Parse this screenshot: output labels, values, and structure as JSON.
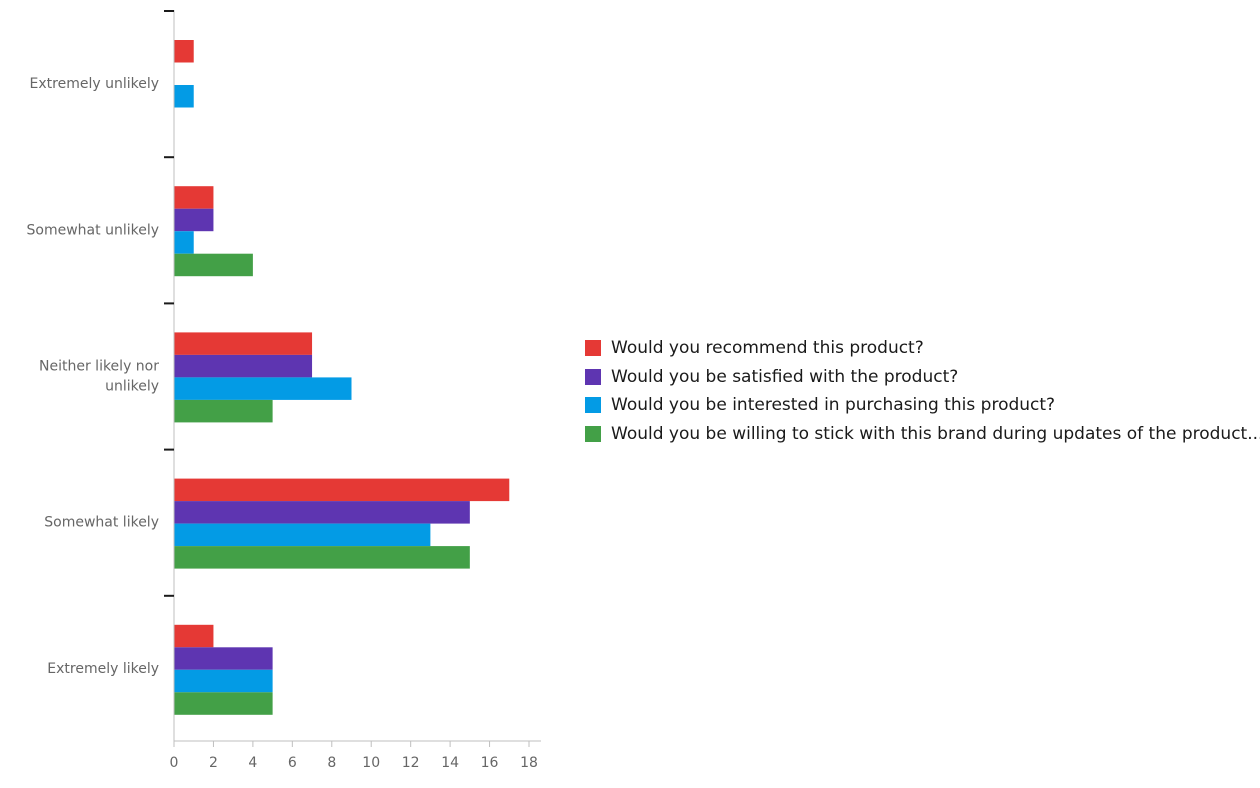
{
  "chart_data": {
    "type": "bar",
    "orientation": "horizontal",
    "categories": [
      "Extremely unlikely",
      "Somewhat unlikely",
      "Neither likely nor unlikely",
      "Somewhat likely",
      "Extremely likely"
    ],
    "series": [
      {
        "name": "Would you recommend this product?",
        "color": "#e53935",
        "values": [
          1,
          2,
          7,
          17,
          2
        ]
      },
      {
        "name": "Would you be satisfied with the product?",
        "color": "#5e35b1",
        "values": [
          0,
          2,
          7,
          15,
          5
        ]
      },
      {
        "name": "Would you be interested in purchasing this product?",
        "color": "#039be5",
        "values": [
          1,
          1,
          9,
          13,
          5
        ]
      },
      {
        "name": "Would you be willing to stick with this brand during updates of the product...",
        "color": "#43a047",
        "values": [
          0,
          4,
          5,
          15,
          5
        ]
      }
    ],
    "xlim": [
      0,
      18
    ],
    "xticks": [
      0,
      2,
      4,
      6,
      8,
      10,
      12,
      14,
      16,
      18
    ],
    "title": "",
    "xlabel": "",
    "ylabel": "",
    "grid": false,
    "legend_position": "right"
  }
}
